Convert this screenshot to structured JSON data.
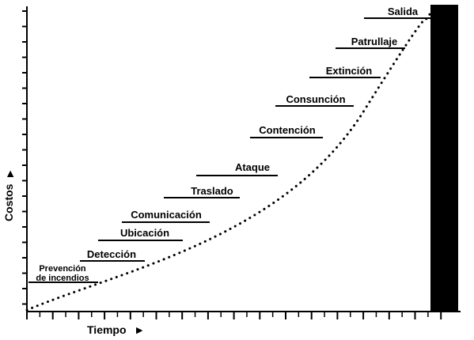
{
  "axes": {
    "x_label": "Tiempo",
    "y_label": "Costos",
    "arrow_glyph": "▶"
  },
  "stages": [
    {
      "label_lines": [
        "Prevención",
        "de incendios"
      ]
    },
    {
      "label_lines": [
        "Detección"
      ]
    },
    {
      "label_lines": [
        "Ubicación"
      ]
    },
    {
      "label_lines": [
        "Comunicación"
      ]
    },
    {
      "label_lines": [
        "Traslado"
      ]
    },
    {
      "label_lines": [
        "Ataque"
      ]
    },
    {
      "label_lines": [
        "Contención"
      ]
    },
    {
      "label_lines": [
        "Consunción"
      ]
    },
    {
      "label_lines": [
        "Extinción"
      ]
    },
    {
      "label_lines": [
        "Patrullaje"
      ]
    },
    {
      "label_lines": [
        "Salida"
      ]
    }
  ],
  "colors": {
    "ink": "#000000",
    "background": "#ffffff"
  }
}
